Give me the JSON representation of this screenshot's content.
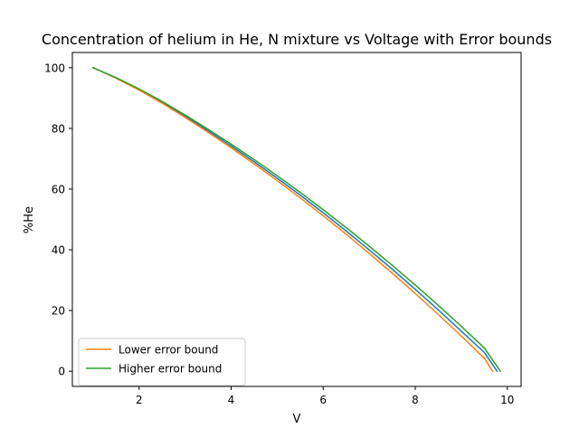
{
  "chart_data": {
    "type": "line",
    "title": "Concentration of helium in He, N mixture vs Voltage with Error bounds",
    "xlabel": "V",
    "ylabel": "%He",
    "xlim": [
      0.55,
      10.3
    ],
    "ylim": [
      -5,
      105
    ],
    "xticks": [
      2,
      4,
      6,
      8,
      10
    ],
    "yticks": [
      0,
      20,
      40,
      60,
      80,
      100
    ],
    "grid": false,
    "legend_position": "lower-left",
    "series": [
      {
        "name": "",
        "color": "#1f77b4",
        "x": [
          1.0,
          1.5,
          2.0,
          2.5,
          3.0,
          3.5,
          4.0,
          4.5,
          5.0,
          5.5,
          6.0,
          6.5,
          7.0,
          7.5,
          8.0,
          8.5,
          9.0,
          9.5,
          9.78
        ],
        "y": [
          100,
          96.6,
          92.8,
          88.6,
          84.0,
          79.2,
          74.2,
          69.0,
          63.6,
          58.0,
          52.2,
          46.2,
          40.0,
          33.6,
          27.0,
          20.2,
          13.2,
          6.2,
          0
        ]
      },
      {
        "name": "Lower error bound",
        "color": "#ff7f0e",
        "x": [
          1.0,
          1.5,
          2.0,
          2.5,
          3.0,
          3.5,
          4.0,
          4.5,
          5.0,
          5.5,
          6.0,
          6.5,
          7.0,
          7.5,
          8.0,
          8.5,
          9.0,
          9.5,
          9.68
        ],
        "y": [
          100,
          96.5,
          92.6,
          88.3,
          83.6,
          78.7,
          73.6,
          68.3,
          62.8,
          57.1,
          51.2,
          45.1,
          38.8,
          32.3,
          25.6,
          18.7,
          11.6,
          4.3,
          0
        ]
      },
      {
        "name": "Higher error bound",
        "color": "#2ca02c",
        "x": [
          1.0,
          1.5,
          2.0,
          2.5,
          3.0,
          3.5,
          4.0,
          4.5,
          5.0,
          5.5,
          6.0,
          6.5,
          7.0,
          7.5,
          8.0,
          8.5,
          9.0,
          9.5,
          9.85
        ],
        "y": [
          100,
          96.7,
          93.0,
          88.9,
          84.4,
          79.7,
          74.8,
          69.7,
          64.4,
          58.9,
          53.2,
          47.3,
          41.2,
          34.9,
          28.4,
          21.7,
          14.8,
          7.7,
          0
        ]
      }
    ]
  }
}
